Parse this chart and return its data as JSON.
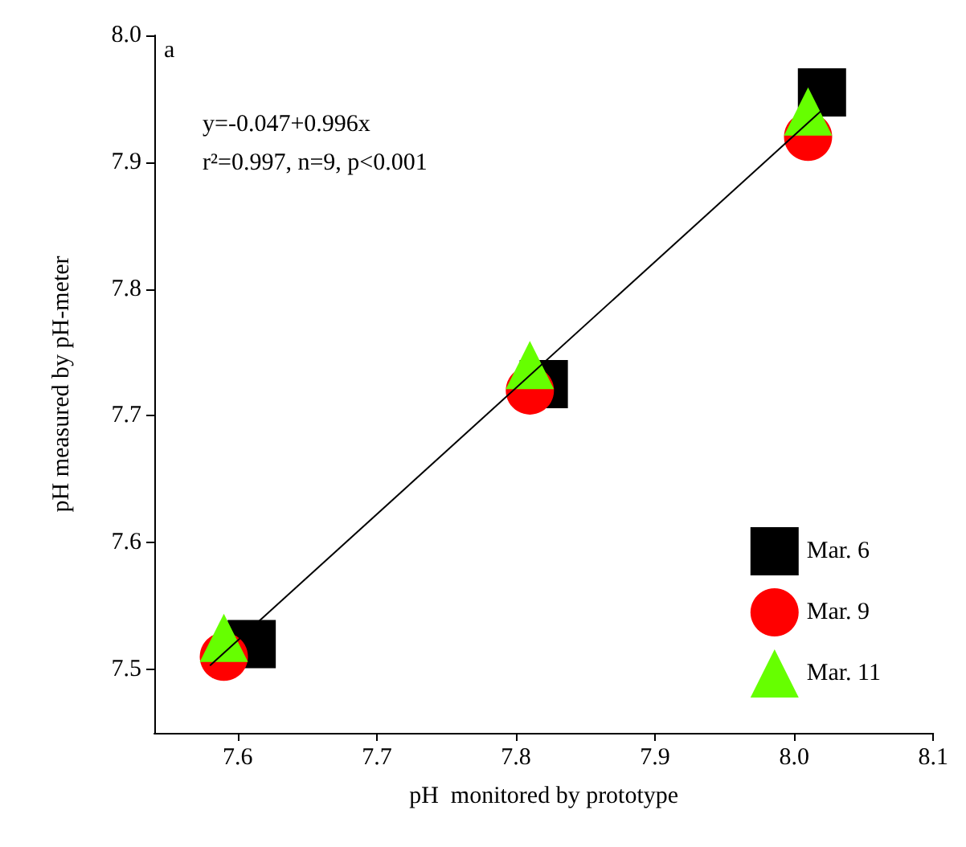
{
  "chart_data": {
    "type": "scatter",
    "xlabel": "pH  monitored by prototype",
    "ylabel": "pH measured by pH-meter",
    "annotations": [
      "a",
      "y=-0.047+0.996x",
      "r²=0.997, n=9, p<0.001"
    ],
    "xlim": [
      7.54,
      8.1
    ],
    "xticks": [
      7.6,
      7.7,
      7.8,
      7.9,
      {
        "value": 8,
        "label": "8.0"
      },
      8.1
    ],
    "ylim": [
      7.45,
      8.0
    ],
    "yticks": [
      7.5,
      7.6,
      7.7,
      7.8,
      7.9,
      {
        "value": 8,
        "label": "8.0"
      }
    ],
    "grid": false,
    "legend": "bottom right",
    "series": [
      {
        "name": "Mar. 6",
        "color": "#000000",
        "marker": "square",
        "x": [
          7.61,
          7.82,
          8.02
        ],
        "values": [
          7.52,
          7.725,
          7.955
        ]
      },
      {
        "name": "Mar. 9",
        "color": "#ff0000",
        "marker": "circle",
        "x": [
          7.59,
          7.81,
          8.01
        ],
        "values": [
          7.51,
          7.72,
          7.92
        ]
      },
      {
        "name": "Mar. 11",
        "color": "#66ff00",
        "marker": "triangle",
        "x": [
          7.59,
          7.81,
          8.01
        ],
        "values": [
          7.525,
          7.74,
          7.94
        ]
      },
      {
        "type": "line",
        "color": "#000000",
        "marker": "none",
        "x": [
          7.58,
          8.02
        ],
        "values": [
          7.503,
          7.941
        ]
      }
    ]
  }
}
